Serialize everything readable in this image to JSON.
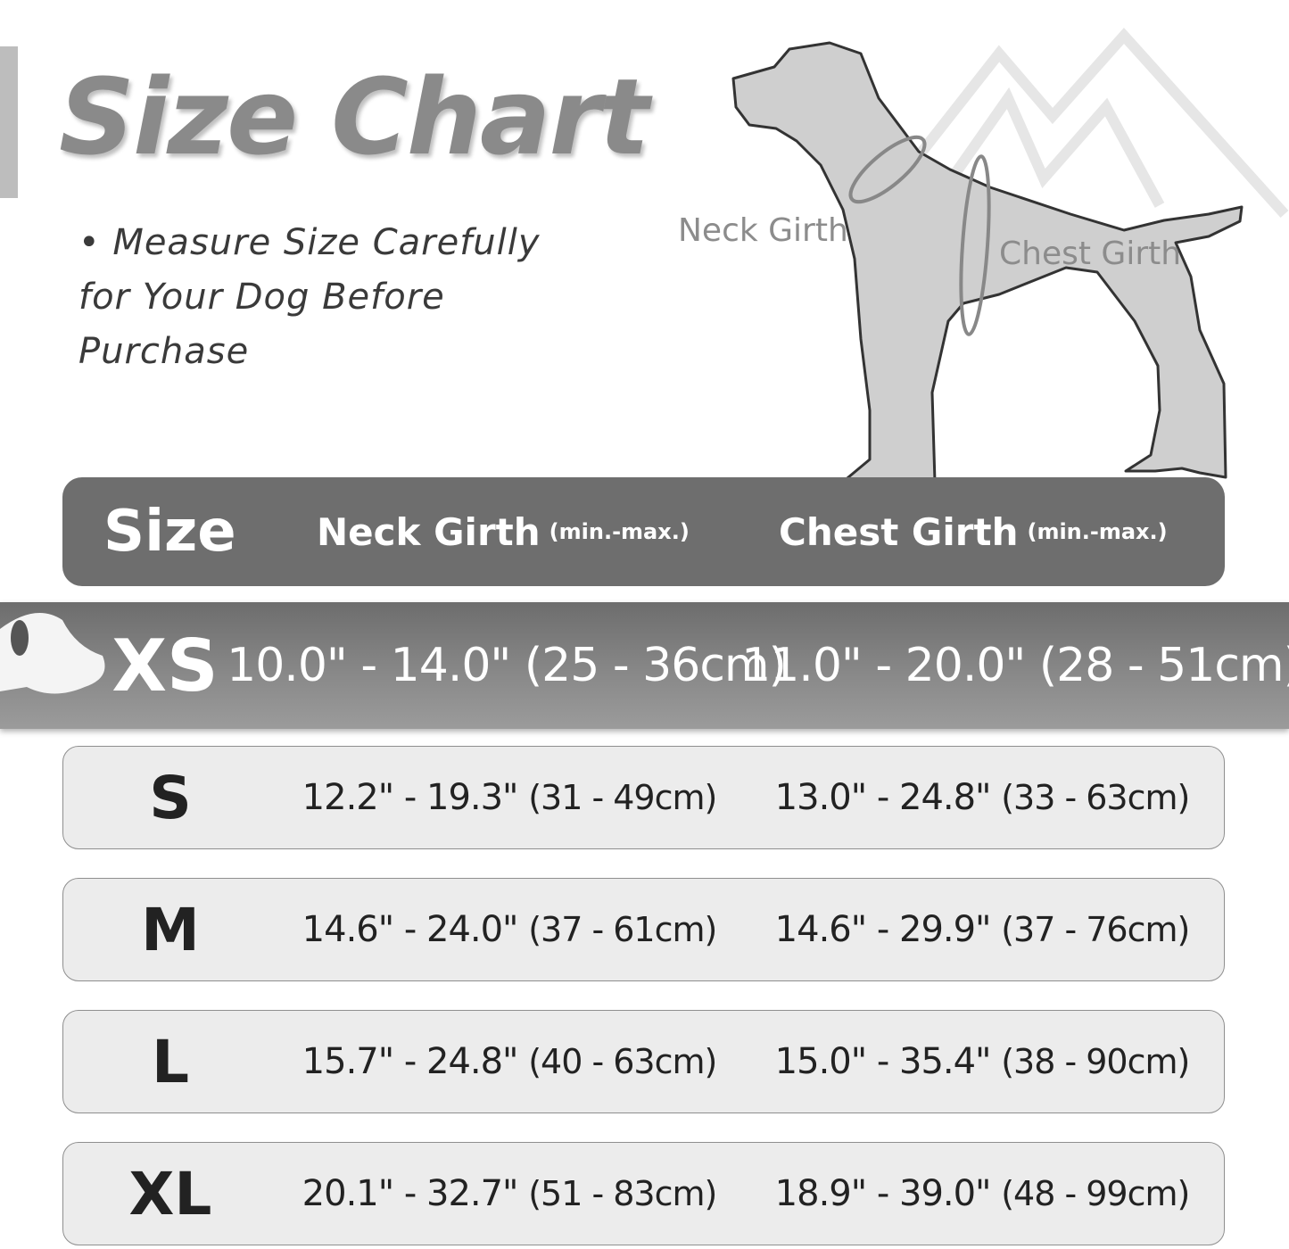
{
  "title": "Size Chart",
  "note": {
    "bullet": "•",
    "lines": [
      "Measure Size Carefully",
      "for Your Dog Before",
      "Purchase"
    ]
  },
  "diagram": {
    "neck_label": "Neck Girth",
    "chest_label": "Chest Girth",
    "icon": "dog-silhouette-icon"
  },
  "table": {
    "headers": {
      "size": "Size",
      "neck": "Neck Girth",
      "neck_note": "(min.-max.)",
      "chest": "Chest Girth",
      "chest_note": "(min.-max.)"
    },
    "highlight_row": "XS",
    "rows": [
      {
        "size": "XS",
        "neck_in": "10.0\" - 14.0\"",
        "neck_cm": "(25 - 36cm)",
        "chest_in": "11.0\" - 20.0\"",
        "chest_cm": "(28 - 51cm)"
      },
      {
        "size": "S",
        "neck_in": "12.2\" - 19.3\"",
        "neck_cm": "(31 - 49cm)",
        "chest_in": "13.0\" - 24.8\"",
        "chest_cm": "(33 - 63cm)"
      },
      {
        "size": "M",
        "neck_in": "14.6\" - 24.0\"",
        "neck_cm": "(37 - 61cm)",
        "chest_in": "14.6\" - 29.9\"",
        "chest_cm": "(37 - 76cm)"
      },
      {
        "size": "L",
        "neck_in": "15.7\" - 24.8\"",
        "neck_cm": "(40 - 63cm)",
        "chest_in": "15.0\" - 35.4\"",
        "chest_cm": "(38 - 90cm)"
      },
      {
        "size": "XL",
        "neck_in": "20.1\" - 32.7\"",
        "neck_cm": "(51 - 83cm)",
        "chest_in": "18.9\" - 39.0\"",
        "chest_cm": "(48 - 99cm)"
      }
    ]
  },
  "colors": {
    "header_bg": "#6e6e6e",
    "row_bg": "#ececec",
    "title": "#8a8a8a",
    "dog_fill": "#cfcfcf"
  }
}
